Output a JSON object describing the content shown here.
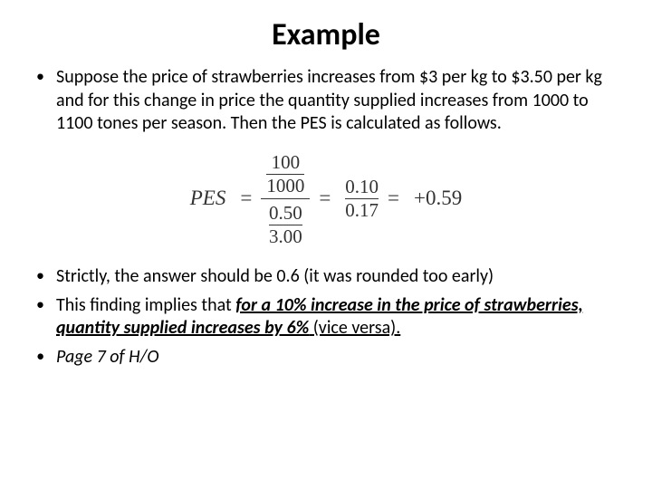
{
  "title": "Example",
  "bullets": {
    "b1": "Suppose the price of strawberries increases from $3 per kg to $3.50 per kg and for this change in price the quantity supplied increases from 1000 to 1100 tones per season.  Then the PES is calculated as follows.",
    "b2_pre": "Strictly, the answer should be 0.6 (it was rounded too early)",
    "b3_pre": "This finding implies that ",
    "b3_emph": "for a 10% increase in the price of strawberries, quantity supplied increases by 6%",
    "b3_post": " (vice versa).",
    "b4": "Page 7 of H/O"
  },
  "formula": {
    "label": "PES",
    "eq": "=",
    "top_num": "100",
    "top_den": "1000",
    "bot_num": "0.50",
    "bot_den": "3.00",
    "mid_num": "0.10",
    "mid_den": "0.17",
    "result": "+0.59"
  },
  "style": {
    "bg": "#ffffff",
    "text": "#000000",
    "title_fontsize": 34,
    "body_fontsize": 20,
    "formula_color": "#333333"
  }
}
